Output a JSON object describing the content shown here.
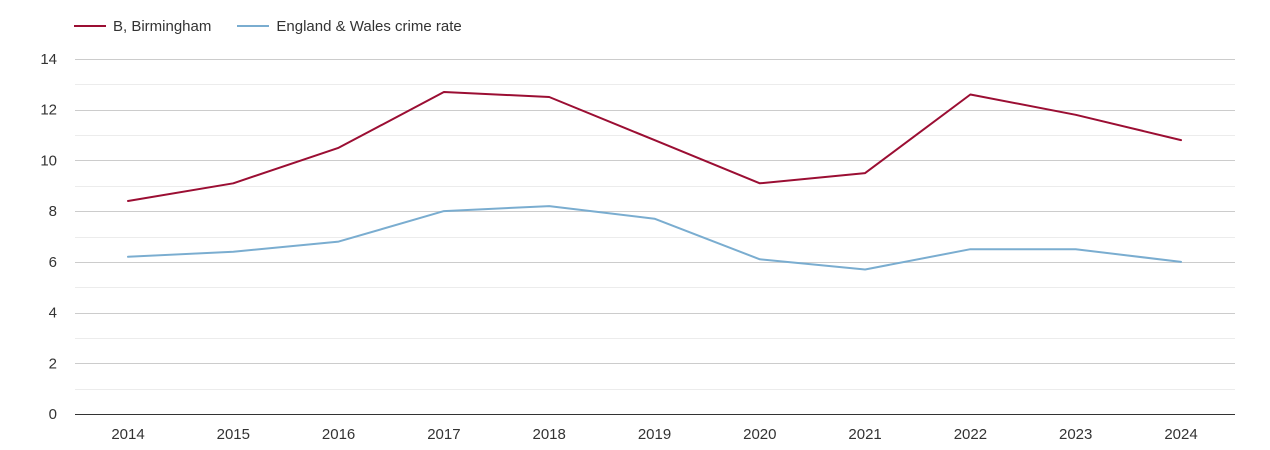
{
  "chart_data": {
    "type": "line",
    "x": [
      "2014",
      "2015",
      "2016",
      "2017",
      "2018",
      "2019",
      "2020",
      "2021",
      "2022",
      "2023",
      "2024"
    ],
    "series": [
      {
        "name": "B, Birmingham",
        "color": "#9b0e33",
        "values": [
          8.4,
          9.1,
          10.5,
          12.7,
          12.5,
          10.8,
          9.1,
          9.5,
          12.6,
          11.8,
          10.8
        ]
      },
      {
        "name": "England & Wales crime rate",
        "color": "#7aadd0",
        "values": [
          6.2,
          6.4,
          6.8,
          8.0,
          8.2,
          7.7,
          6.1,
          5.7,
          6.5,
          6.5,
          6.0
        ]
      }
    ],
    "yticks": [
      "0",
      "2",
      "4",
      "6",
      "8",
      "10",
      "12",
      "14"
    ],
    "ylim": [
      0,
      14
    ],
    "grid": true,
    "minor_grid": true,
    "legend_position": "top-left",
    "title": "",
    "xlabel": "",
    "ylabel": ""
  }
}
